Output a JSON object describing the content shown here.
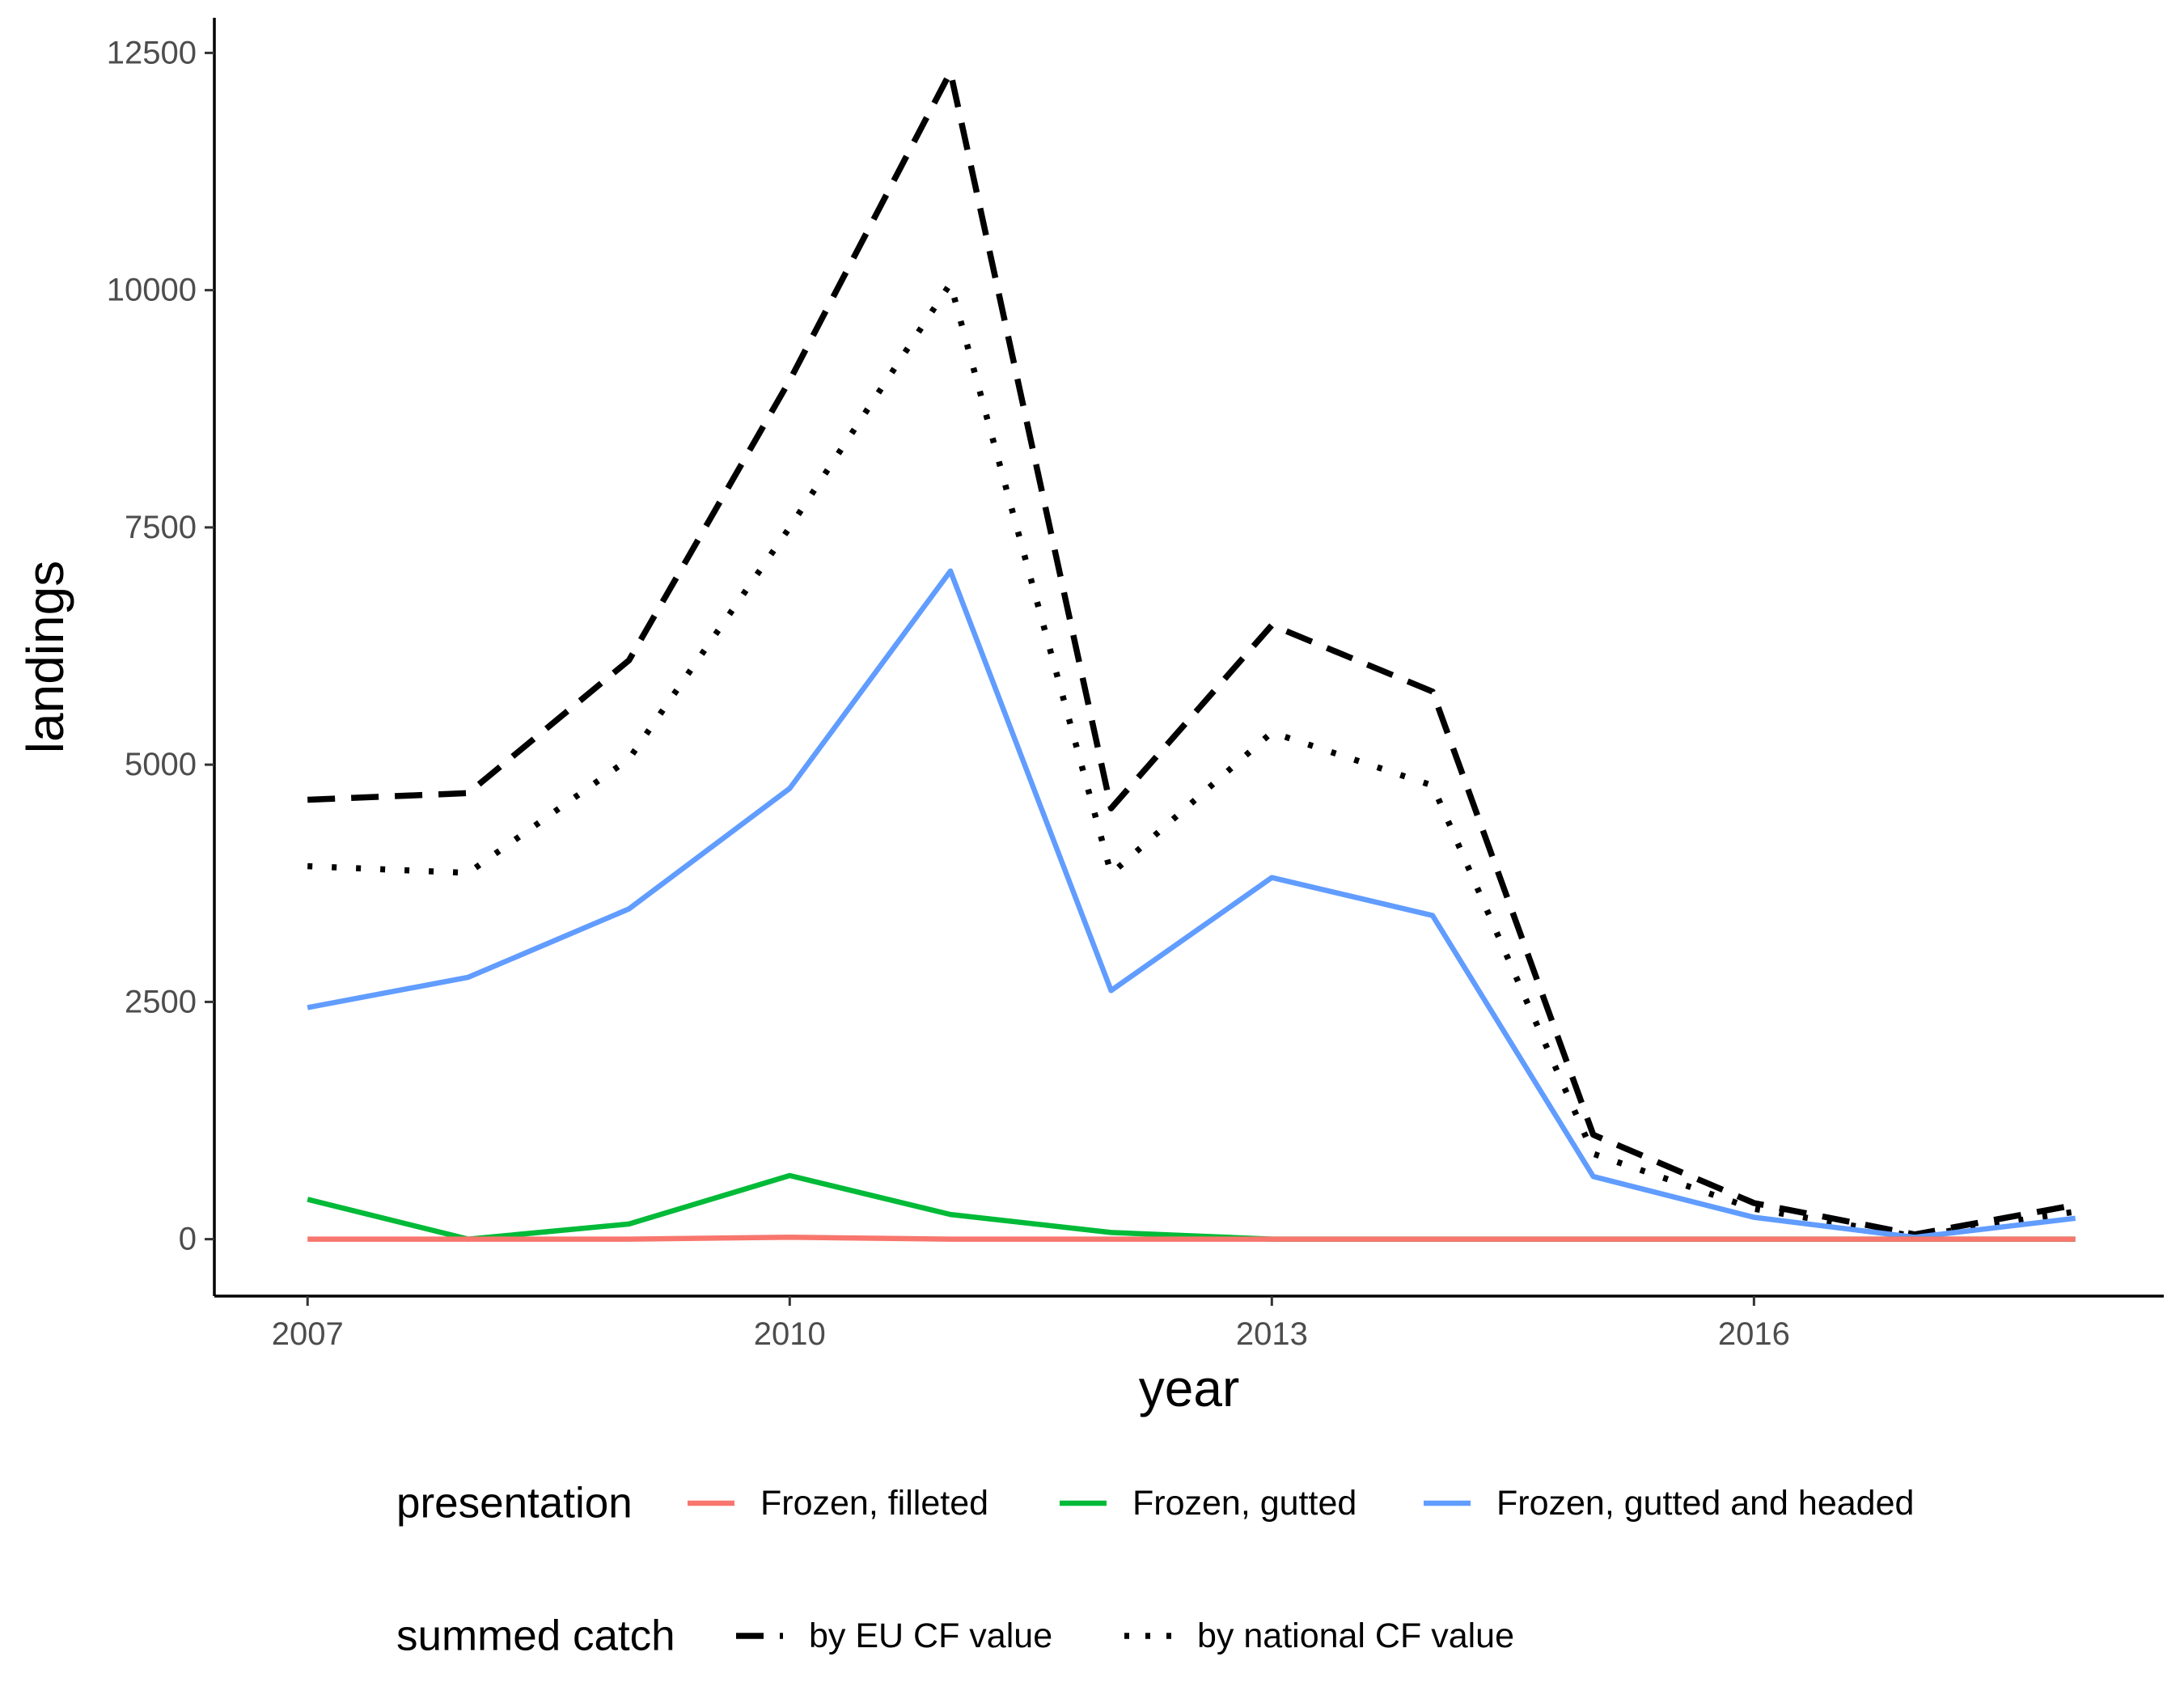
{
  "chart_data": {
    "type": "line",
    "xlabel": "year",
    "ylabel": "landings",
    "xlim": [
      2006.42,
      2018.55
    ],
    "ylim": [
      -600,
      12870
    ],
    "x_ticks": [
      2007,
      2010,
      2013,
      2016
    ],
    "y_ticks": [
      0,
      2500,
      5000,
      7500,
      10000,
      12500
    ],
    "grid": false,
    "legend_position": "bottom",
    "x": [
      2007,
      2008,
      2009,
      2010,
      2011,
      2012,
      2013,
      2014,
      2015,
      2016,
      2017,
      2018
    ],
    "presentation_legend": {
      "title": "presentation",
      "entries": [
        {
          "label": "Frozen, filleted",
          "color": "#F8766D"
        },
        {
          "label": "Frozen, gutted",
          "color": "#00BA38"
        },
        {
          "label": "Frozen, gutted and headed",
          "color": "#619CFF"
        }
      ]
    },
    "summed_legend": {
      "title": "summed catch",
      "entries": [
        {
          "label": "by EU CF value",
          "style": "dashed"
        },
        {
          "label": "by national CF value",
          "style": "dotted"
        }
      ]
    },
    "series": [
      {
        "name": "Frozen, filleted",
        "color": "#F8766D",
        "style": "solid",
        "values": [
          0,
          0,
          0,
          20,
          0,
          0,
          0,
          0,
          0,
          0,
          0,
          0
        ]
      },
      {
        "name": "Frozen, gutted",
        "color": "#00BA38",
        "style": "solid",
        "values": [
          420,
          0,
          160,
          670,
          260,
          70,
          0,
          0,
          0,
          0,
          0,
          0
        ]
      },
      {
        "name": "Frozen, gutted and headed",
        "color": "#619CFF",
        "style": "solid",
        "values": [
          2440,
          2760,
          3480,
          4750,
          7040,
          2620,
          3810,
          3410,
          660,
          230,
          20,
          220
        ]
      },
      {
        "name": "by EU CF value",
        "color": "#000000",
        "style": "dashed",
        "values": [
          4630,
          4700,
          6100,
          9050,
          12300,
          4540,
          6470,
          5770,
          1100,
          380,
          50,
          360
        ]
      },
      {
        "name": "by national CF value",
        "color": "#000000",
        "style": "dotted",
        "values": [
          3930,
          3860,
          5060,
          7500,
          10070,
          3850,
          5340,
          4780,
          900,
          320,
          30,
          290
        ]
      }
    ]
  }
}
